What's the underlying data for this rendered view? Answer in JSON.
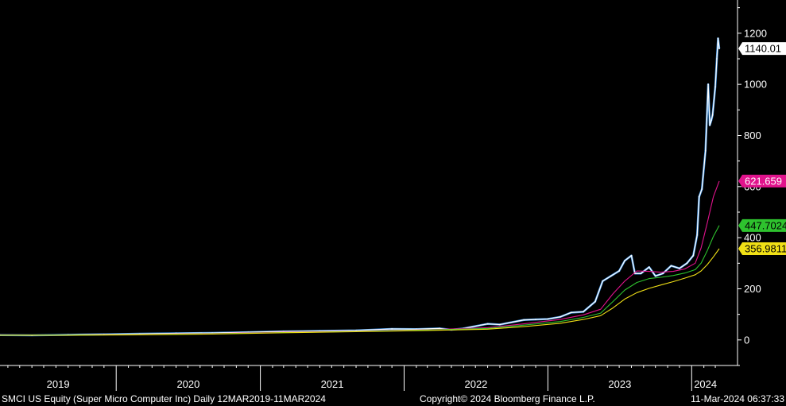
{
  "footer": {
    "ticker_description": "SMCI US Equity (Super Micro Computer Inc)  Daily 12MAR2019-11MAR2024",
    "copyright": "Copyright© 2024 Bloomberg Finance L.P.",
    "timestamp": "11-Mar-2024 06:37:33"
  },
  "colors": {
    "background": "#000000",
    "price": "#ffffff",
    "price_wick": "#3b8fe0",
    "ma_magenta": "#e0138c",
    "ma_green": "#2ec22e",
    "ma_yellow": "#f0e016",
    "axis": "#ffffff"
  },
  "chart_data": {
    "type": "line",
    "x_axis": {
      "labels": [
        "2019",
        "2020",
        "2021",
        "2022",
        "2023",
        "2024"
      ],
      "range": [
        "2019-03-12",
        "2024-03-11"
      ]
    },
    "y_axis": {
      "ticks": [
        0,
        200,
        400,
        600,
        800,
        1000,
        1200
      ],
      "range": [
        -100,
        1330
      ],
      "position": "right"
    },
    "last_value_labels": [
      {
        "series": "price",
        "value": "1140.01",
        "bg": "#ffffff",
        "fg": "#000000"
      },
      {
        "series": "ma_magenta",
        "value": "621.659",
        "bg": "#e0138c",
        "fg": "#ffffff"
      },
      {
        "series": "ma_green",
        "value": "447.7024",
        "bg": "#2ec22e",
        "fg": "#000000"
      },
      {
        "series": "ma_yellow",
        "value": "356.9811",
        "bg": "#f0e016",
        "fg": "#000000"
      }
    ],
    "series": [
      {
        "key": "price",
        "color": "#ffffff",
        "points": [
          [
            "2019-03-12",
            19
          ],
          [
            "2019-06-01",
            18
          ],
          [
            "2019-09-01",
            20
          ],
          [
            "2019-12-01",
            22
          ],
          [
            "2020-03-01",
            24
          ],
          [
            "2020-06-01",
            26
          ],
          [
            "2020-09-01",
            27
          ],
          [
            "2020-12-01",
            30
          ],
          [
            "2021-03-01",
            33
          ],
          [
            "2021-06-01",
            35
          ],
          [
            "2021-09-01",
            37
          ],
          [
            "2021-12-01",
            43
          ],
          [
            "2022-02-01",
            42
          ],
          [
            "2022-04-01",
            45
          ],
          [
            "2022-05-01",
            40
          ],
          [
            "2022-06-01",
            45
          ],
          [
            "2022-08-01",
            63
          ],
          [
            "2022-09-01",
            60
          ],
          [
            "2022-11-01",
            78
          ],
          [
            "2022-12-01",
            80
          ],
          [
            "2023-01-01",
            82
          ],
          [
            "2023-02-01",
            90
          ],
          [
            "2023-03-01",
            107
          ],
          [
            "2023-04-01",
            110
          ],
          [
            "2023-05-01",
            150
          ],
          [
            "2023-05-20",
            230
          ],
          [
            "2023-06-10",
            250
          ],
          [
            "2023-07-01",
            270
          ],
          [
            "2023-07-15",
            310
          ],
          [
            "2023-08-01",
            330
          ],
          [
            "2023-08-10",
            260
          ],
          [
            "2023-08-25",
            260
          ],
          [
            "2023-09-15",
            285
          ],
          [
            "2023-10-01",
            250
          ],
          [
            "2023-10-20",
            260
          ],
          [
            "2023-11-10",
            290
          ],
          [
            "2023-12-01",
            280
          ],
          [
            "2023-12-20",
            300
          ],
          [
            "2024-01-05",
            330
          ],
          [
            "2024-01-15",
            410
          ],
          [
            "2024-01-20",
            560
          ],
          [
            "2024-01-27",
            590
          ],
          [
            "2024-02-05",
            740
          ],
          [
            "2024-02-12",
            1000
          ],
          [
            "2024-02-16",
            840
          ],
          [
            "2024-02-20",
            860
          ],
          [
            "2024-02-23",
            880
          ],
          [
            "2024-03-01",
            990
          ],
          [
            "2024-03-05",
            1100
          ],
          [
            "2024-03-08",
            1180
          ],
          [
            "2024-03-11",
            1140.01
          ]
        ]
      },
      {
        "key": "ma_magenta",
        "color": "#e0138c",
        "points": [
          [
            "2019-03-12",
            20
          ],
          [
            "2019-09-01",
            19
          ],
          [
            "2020-03-01",
            22
          ],
          [
            "2020-09-01",
            25
          ],
          [
            "2021-03-01",
            30
          ],
          [
            "2021-09-01",
            34
          ],
          [
            "2022-03-01",
            40
          ],
          [
            "2022-08-01",
            48
          ],
          [
            "2022-11-01",
            63
          ],
          [
            "2023-02-01",
            80
          ],
          [
            "2023-04-01",
            98
          ],
          [
            "2023-05-15",
            120
          ],
          [
            "2023-06-15",
            180
          ],
          [
            "2023-07-15",
            230
          ],
          [
            "2023-08-15",
            270
          ],
          [
            "2023-09-15",
            268
          ],
          [
            "2023-10-15",
            265
          ],
          [
            "2023-11-15",
            268
          ],
          [
            "2023-12-15",
            278
          ],
          [
            "2024-01-10",
            300
          ],
          [
            "2024-01-25",
            360
          ],
          [
            "2024-02-10",
            460
          ],
          [
            "2024-02-25",
            560
          ],
          [
            "2024-03-11",
            621.659
          ]
        ]
      },
      {
        "key": "ma_green",
        "color": "#2ec22e",
        "points": [
          [
            "2019-03-12",
            19
          ],
          [
            "2019-09-01",
            19
          ],
          [
            "2020-03-01",
            21
          ],
          [
            "2020-09-01",
            24
          ],
          [
            "2021-03-01",
            29
          ],
          [
            "2021-09-01",
            33
          ],
          [
            "2022-03-01",
            39
          ],
          [
            "2022-08-01",
            45
          ],
          [
            "2022-11-01",
            58
          ],
          [
            "2023-02-01",
            72
          ],
          [
            "2023-04-01",
            88
          ],
          [
            "2023-05-15",
            105
          ],
          [
            "2023-06-15",
            150
          ],
          [
            "2023-07-15",
            195
          ],
          [
            "2023-08-15",
            225
          ],
          [
            "2023-09-15",
            240
          ],
          [
            "2023-10-15",
            245
          ],
          [
            "2023-11-15",
            252
          ],
          [
            "2023-12-15",
            262
          ],
          [
            "2024-01-10",
            275
          ],
          [
            "2024-01-25",
            300
          ],
          [
            "2024-02-10",
            350
          ],
          [
            "2024-02-25",
            405
          ],
          [
            "2024-03-11",
            447.7024
          ]
        ]
      },
      {
        "key": "ma_yellow",
        "color": "#f0e016",
        "points": [
          [
            "2019-03-12",
            18
          ],
          [
            "2019-09-01",
            18
          ],
          [
            "2020-03-01",
            20
          ],
          [
            "2020-09-01",
            23
          ],
          [
            "2021-03-01",
            28
          ],
          [
            "2021-09-01",
            32
          ],
          [
            "2022-03-01",
            37
          ],
          [
            "2022-08-01",
            42
          ],
          [
            "2022-11-01",
            52
          ],
          [
            "2023-02-01",
            65
          ],
          [
            "2023-04-01",
            80
          ],
          [
            "2023-05-15",
            95
          ],
          [
            "2023-06-15",
            125
          ],
          [
            "2023-07-15",
            160
          ],
          [
            "2023-08-15",
            185
          ],
          [
            "2023-09-15",
            202
          ],
          [
            "2023-10-15",
            215
          ],
          [
            "2023-11-15",
            228
          ],
          [
            "2023-12-15",
            242
          ],
          [
            "2024-01-10",
            255
          ],
          [
            "2024-01-25",
            270
          ],
          [
            "2024-02-10",
            295
          ],
          [
            "2024-02-25",
            325
          ],
          [
            "2024-03-11",
            356.9811
          ]
        ]
      }
    ]
  }
}
